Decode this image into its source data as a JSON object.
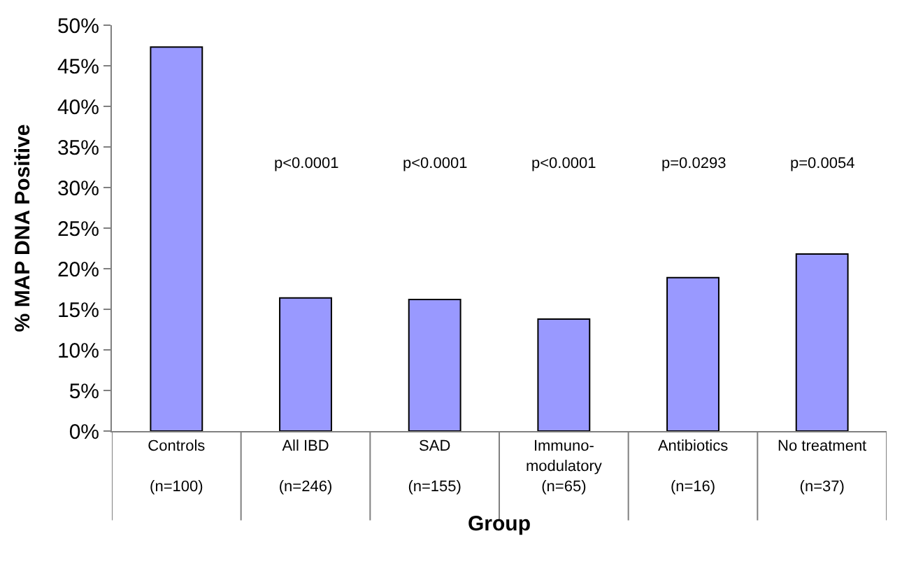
{
  "chart_data": {
    "type": "bar",
    "xlabel": "Group",
    "ylabel": "% MAP DNA Positive",
    "categories": [
      "Controls\n\n(n=100)",
      "All IBD\n\n(n=246)",
      "SAD\n\n(n=155)",
      "Immuno-\nmodulatory\n(n=65)",
      "Antibiotics\n\n(n=16)",
      "No treatment\n\n(n=37)"
    ],
    "values": [
      47.3,
      16.4,
      16.2,
      13.8,
      18.9,
      21.8
    ],
    "color": "#9999ff",
    "ylim": [
      0,
      50
    ],
    "yticks": [
      {
        "value": 0,
        "label": "0%"
      },
      {
        "value": 5,
        "label": "5%"
      },
      {
        "value": 10,
        "label": "10%"
      },
      {
        "value": 15,
        "label": "15%"
      },
      {
        "value": 20,
        "label": "20%"
      },
      {
        "value": 25,
        "label": "25%"
      },
      {
        "value": 30,
        "label": "30%"
      },
      {
        "value": 35,
        "label": "35%"
      },
      {
        "value": 40,
        "label": "40%"
      },
      {
        "value": 45,
        "label": "45%"
      },
      {
        "value": 50,
        "label": "50%"
      }
    ],
    "annotations": [
      "p<0.0001",
      "p<0.0001",
      "p<0.0001",
      "p=0.0293",
      "p=0.0054"
    ],
    "legend": false
  }
}
